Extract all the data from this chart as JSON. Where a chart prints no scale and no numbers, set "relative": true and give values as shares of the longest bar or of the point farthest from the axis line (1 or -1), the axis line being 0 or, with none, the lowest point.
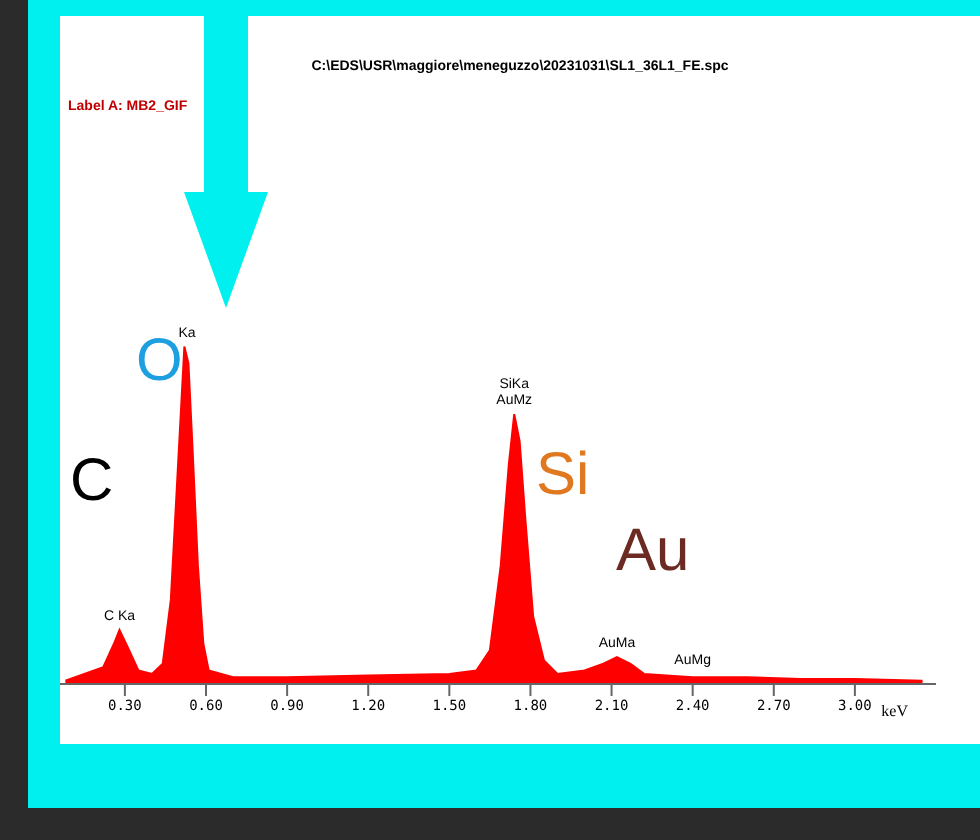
{
  "chart_data": {
    "type": "area",
    "title": "C:\\EDS\\USR\\maggiore\\meneguzzo\\20231031\\SL1_36L1_FE.spc",
    "subtitle": "Label A: MB2_GIF",
    "xlabel": "keV",
    "relative": true,
    "x": [
      0.08,
      0.15,
      0.22,
      0.26,
      0.28,
      0.31,
      0.35,
      0.4,
      0.44,
      0.47,
      0.49,
      0.51,
      0.52,
      0.535,
      0.55,
      0.57,
      0.59,
      0.61,
      0.7,
      0.9,
      1.2,
      1.5,
      1.6,
      1.65,
      1.69,
      1.72,
      1.74,
      1.76,
      1.78,
      1.81,
      1.85,
      1.9,
      2.0,
      2.07,
      2.12,
      2.17,
      2.22,
      2.4,
      2.6,
      2.8,
      3.0,
      3.25
    ],
    "series": [
      {
        "color": "#ff0000",
        "values": [
          0.01,
          0.03,
          0.05,
          0.12,
          0.16,
          0.11,
          0.04,
          0.03,
          0.06,
          0.25,
          0.55,
          0.85,
          1.0,
          0.95,
          0.7,
          0.35,
          0.12,
          0.04,
          0.02,
          0.02,
          0.025,
          0.03,
          0.04,
          0.1,
          0.35,
          0.65,
          0.8,
          0.72,
          0.5,
          0.2,
          0.07,
          0.03,
          0.04,
          0.06,
          0.08,
          0.06,
          0.03,
          0.02,
          0.02,
          0.015,
          0.015,
          0.01
        ]
      }
    ],
    "xlim": [
      0.06,
      3.3
    ],
    "xticks": [
      {
        "value": 0.3,
        "label": "0.30"
      },
      {
        "value": 0.6,
        "label": "0.60"
      },
      {
        "value": 0.9,
        "label": "0.90"
      },
      {
        "value": 1.2,
        "label": "1.20"
      },
      {
        "value": 1.5,
        "label": "1.50"
      },
      {
        "value": 1.8,
        "label": "1.80"
      },
      {
        "value": 2.1,
        "label": "2.10"
      },
      {
        "value": 2.4,
        "label": "2.40"
      },
      {
        "value": 2.7,
        "label": "2.70"
      },
      {
        "value": 3.0,
        "label": "3.00"
      }
    ],
    "grid": false,
    "legend": false,
    "annotations": [
      {
        "text": "C Ka",
        "x": 0.28,
        "y": 0.16
      },
      {
        "text": "Ka",
        "x": 0.53,
        "y": 1.0
      },
      {
        "text": "AuMz",
        "x": 1.74,
        "y": 0.8
      },
      {
        "text": "SiKa",
        "x": 1.74,
        "y": 0.8
      },
      {
        "text": "AuMa",
        "x": 2.12,
        "y": 0.08
      },
      {
        "text": "AuMg",
        "x": 2.4,
        "y": 0.03
      },
      "C",
      "O",
      "Si",
      "Au"
    ]
  }
}
